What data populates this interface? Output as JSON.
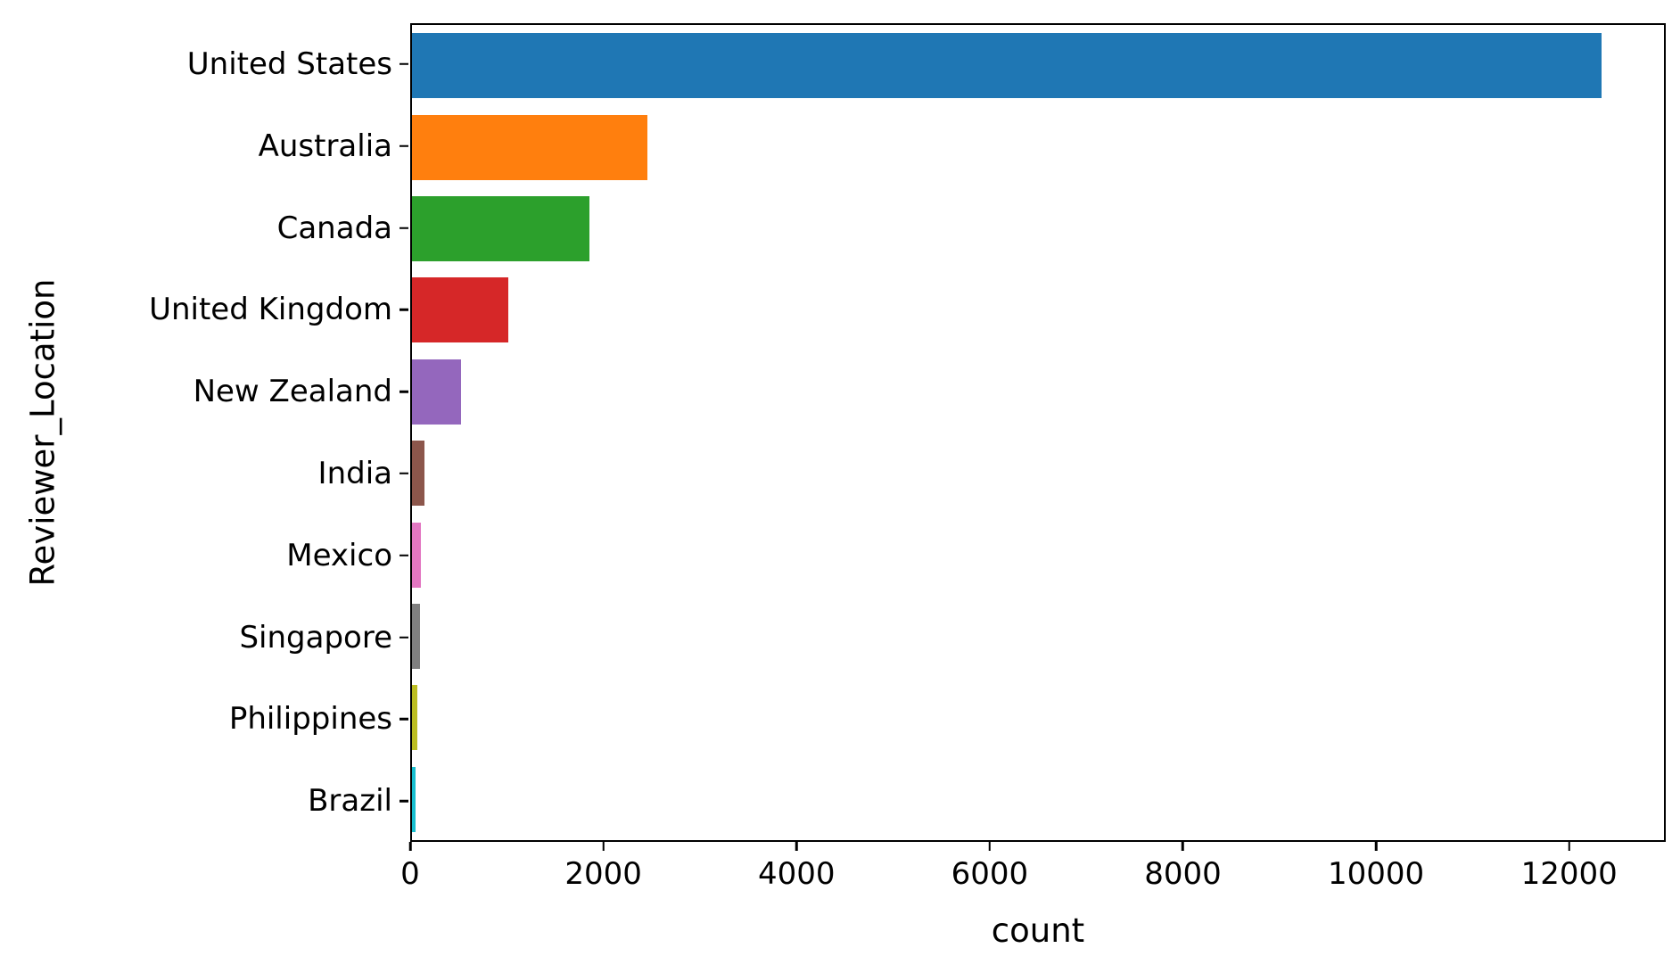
{
  "chart_data": {
    "type": "bar",
    "orientation": "horizontal",
    "title": "",
    "xlabel": "count",
    "ylabel": "Reviewer_Location",
    "categories": [
      "United States",
      "Australia",
      "Canada",
      "United Kingdom",
      "New Zealand",
      "India",
      "Mexico",
      "Singapore",
      "Philippines",
      "Brazil"
    ],
    "values": [
      12350,
      2440,
      1840,
      1000,
      510,
      130,
      95,
      85,
      55,
      35
    ],
    "colors": [
      "#1f77b4",
      "#ff7f0e",
      "#2ca02c",
      "#d62728",
      "#9467bd",
      "#8c564b",
      "#e377c2",
      "#7f7f7f",
      "#bcbd22",
      "#17becf"
    ],
    "xlim": [
      0,
      13000
    ],
    "xticks": [
      0,
      2000,
      4000,
      6000,
      8000,
      10000,
      12000
    ],
    "grid": false,
    "legend_position": "none"
  }
}
